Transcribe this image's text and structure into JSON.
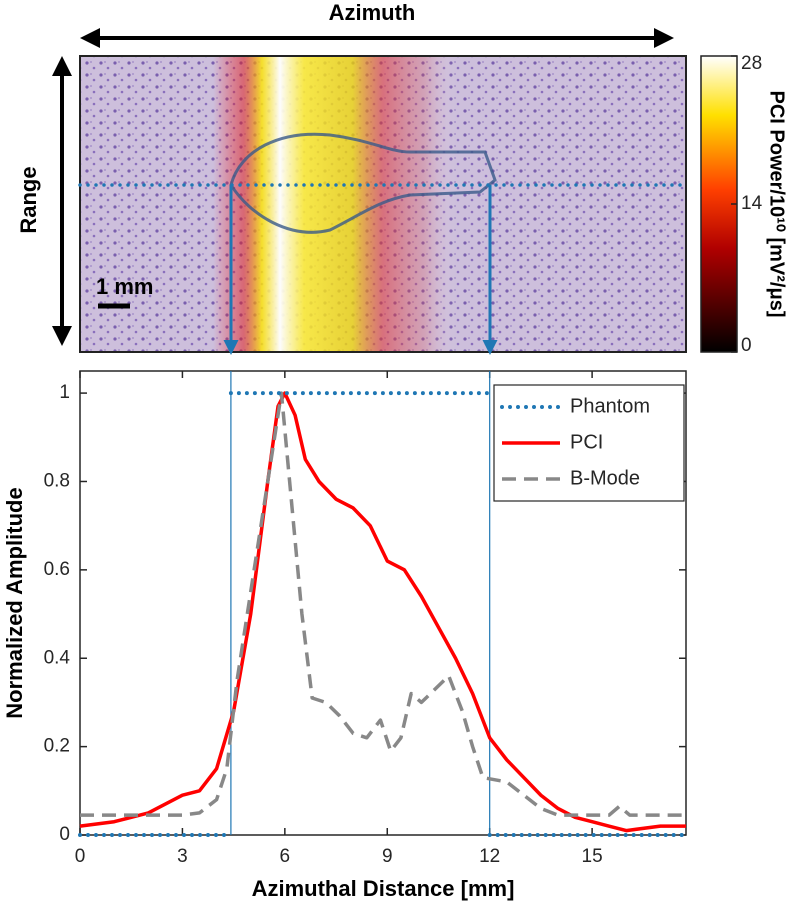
{
  "chart_data": [
    {
      "type": "image",
      "top_label": "Azimuth",
      "side_label": "Range",
      "scale_label": "1 mm",
      "colorbar_label": "PCI Power/10¹⁰ [mV²/μs]",
      "clim": [
        0,
        28
      ],
      "cticks": [
        0,
        14,
        28
      ]
    },
    {
      "type": "line",
      "xlabel": "Azimuthal Distance [mm]",
      "ylabel": "Normalized Amplitude",
      "xlim": [
        0,
        17.75
      ],
      "ylim": [
        0,
        1.05
      ],
      "xticks": [
        0,
        3,
        6,
        9,
        12,
        15
      ],
      "yticks": [
        0,
        0.2,
        0.4,
        0.6,
        0.8,
        1
      ],
      "vlines": [
        4.42,
        12
      ],
      "vline_color": "#1f77b4",
      "legend": "upper right",
      "series": [
        {
          "name": "Phantom",
          "color": "#1f77b4",
          "style": "dotted",
          "x": [
            0,
            4.42,
            4.42,
            4.42,
            12,
            12,
            12,
            17.75
          ],
          "values": [
            0,
            0,
            null,
            1,
            1,
            null,
            0,
            0
          ]
        },
        {
          "name": "PCI",
          "color": "#ff0000",
          "style": "solid",
          "x": [
            0,
            1,
            2,
            3,
            3.5,
            4,
            4.5,
            5,
            5.5,
            5.8,
            6,
            6.3,
            6.6,
            7,
            7.5,
            8,
            8.5,
            9,
            9.5,
            10,
            10.5,
            11,
            11.5,
            12,
            12.5,
            13,
            13.5,
            14,
            14.5,
            15,
            15.5,
            16,
            17,
            17.75
          ],
          "values": [
            0.02,
            0.03,
            0.05,
            0.09,
            0.1,
            0.15,
            0.28,
            0.5,
            0.8,
            0.97,
            1,
            0.95,
            0.85,
            0.8,
            0.76,
            0.74,
            0.7,
            0.62,
            0.6,
            0.54,
            0.47,
            0.4,
            0.32,
            0.22,
            0.17,
            0.13,
            0.09,
            0.06,
            0.04,
            0.03,
            0.02,
            0.01,
            0.02,
            0.02
          ]
        },
        {
          "name": "B-Mode",
          "color": "#888888",
          "style": "dashed",
          "x": [
            0,
            3,
            3.5,
            4,
            4.3,
            4.6,
            5,
            5.5,
            5.9,
            6.2,
            6.5,
            6.8,
            7.2,
            7.6,
            8,
            8.4,
            8.8,
            9.1,
            9.4,
            9.7,
            10,
            10.4,
            10.8,
            11.2,
            11.5,
            11.8,
            12.5,
            13,
            13.5,
            14,
            15.5,
            15.8,
            16.1,
            17.75
          ],
          "values": [
            0.045,
            0.045,
            0.05,
            0.08,
            0.15,
            0.35,
            0.55,
            0.8,
            1,
            0.75,
            0.5,
            0.31,
            0.3,
            0.27,
            0.23,
            0.22,
            0.26,
            0.19,
            0.22,
            0.32,
            0.3,
            0.33,
            0.36,
            0.28,
            0.2,
            0.13,
            0.12,
            0.09,
            0.06,
            0.045,
            0.045,
            0.065,
            0.045,
            0.045
          ]
        }
      ]
    }
  ]
}
